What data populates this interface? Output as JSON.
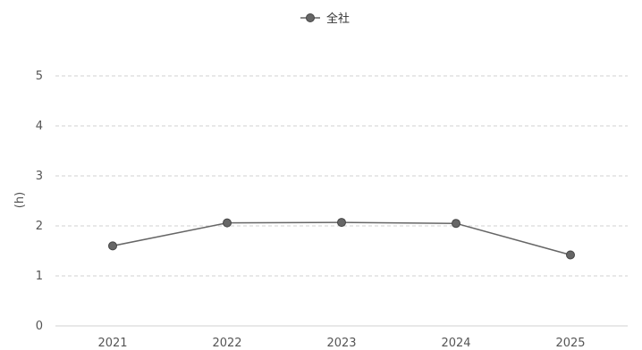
{
  "chart_data": {
    "type": "line",
    "categories": [
      "2021",
      "2022",
      "2023",
      "2024",
      "2025"
    ],
    "series": [
      {
        "name": "全社",
        "values": [
          1.6,
          2.06,
          2.07,
          2.05,
          1.42
        ],
        "color": "#666666"
      }
    ],
    "ylabel": "(h)",
    "ylim": [
      0,
      5
    ],
    "yticks": [
      0,
      1,
      2,
      3,
      4,
      5
    ],
    "grid": true,
    "legend_position": "top-center"
  }
}
